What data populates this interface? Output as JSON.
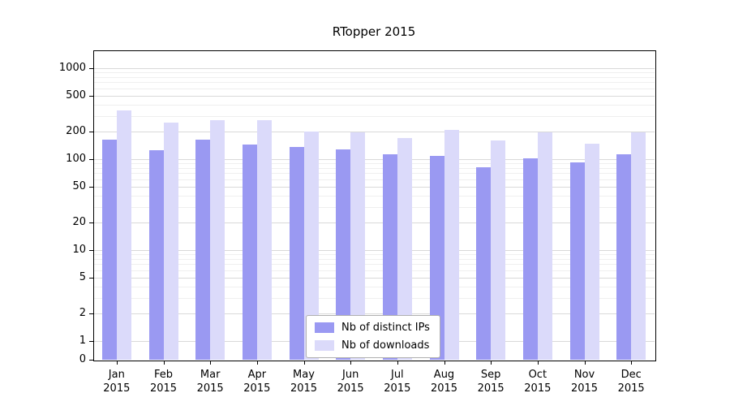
{
  "title": "RTopper 2015",
  "colors": {
    "distinct_ips": "#9a99f2",
    "downloads": "#dbdafa",
    "grid_major": "#d9d9d9",
    "grid_minor": "#efefef",
    "axis": "#000000"
  },
  "legend": {
    "items": [
      {
        "label": "Nb of distinct IPs",
        "series": "distinct_ips"
      },
      {
        "label": "Nb of downloads",
        "series": "downloads"
      }
    ]
  },
  "axes": {
    "yticks": [
      0,
      1,
      2,
      5,
      10,
      20,
      50,
      100,
      200,
      500,
      1000
    ],
    "year_label": "2015"
  },
  "chart_data": {
    "type": "bar",
    "title": "RTopper 2015",
    "categories": [
      "Jan",
      "Feb",
      "Mar",
      "Apr",
      "May",
      "Jun",
      "Jul",
      "Aug",
      "Sep",
      "Oct",
      "Nov",
      "Dec"
    ],
    "year_label": "2015",
    "series": [
      {
        "name": "Nb of distinct IPs",
        "values": [
          165,
          125,
          165,
          145,
          135,
          128,
          112,
          108,
          82,
          103,
          93,
          112
        ]
      },
      {
        "name": "Nb of downloads",
        "values": [
          340,
          250,
          270,
          268,
          202,
          196,
          172,
          208,
          162,
          196,
          148,
          196
        ]
      }
    ],
    "xlabel": "",
    "ylabel": "",
    "yscale": "log",
    "yticks": [
      0,
      1,
      2,
      5,
      10,
      20,
      50,
      100,
      200,
      500,
      1000
    ],
    "ylim": [
      0,
      1500
    ],
    "grid": true,
    "legend_position": "lower center"
  }
}
